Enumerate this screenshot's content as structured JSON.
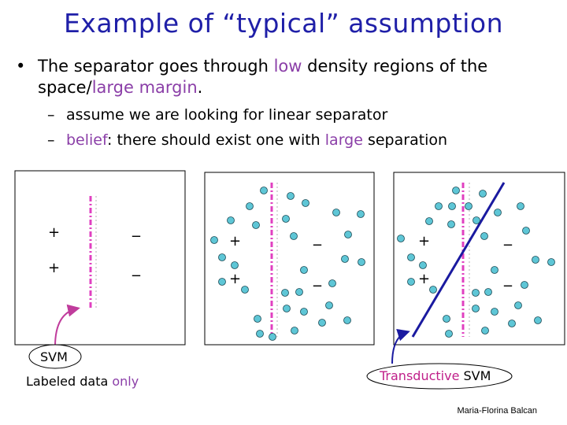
{
  "title": "Example of “typical” assumption",
  "bullets": [
    {
      "marker": "•",
      "line1_a": "The separator goes through ",
      "line1_hl": "low",
      "line1_b": " density regions of the",
      "line2_a": "space/",
      "line2_hl": "large margin",
      "line2_b": "."
    }
  ],
  "sub_bullets": [
    {
      "marker": "–",
      "text_a": "assume we are looking for linear separator",
      "text_hl": "",
      "text_b": ""
    },
    {
      "marker": "–",
      "text_a": "",
      "text_hl": "belief",
      "text_b": ": there should exist one with ",
      "text_hl2": "large",
      "text_c": " separation"
    }
  ],
  "panels": {
    "plus": "+",
    "minus": "_"
  },
  "labels": {
    "svm": "SVM",
    "labeled_a": "Labeled data ",
    "labeled_hl": "only",
    "tsvm_a": "Transductive",
    "tsvm_b": " SVM"
  },
  "credit": "Maria-Florina Balcan",
  "colors": {
    "title": "#1f1fa8",
    "highlight": "#8b3fa8",
    "margin_line": "#e040c0",
    "unlabeled_point": "#5ec6d6",
    "separator": "#1a1aa0",
    "arrow": "#c03c9c"
  }
}
